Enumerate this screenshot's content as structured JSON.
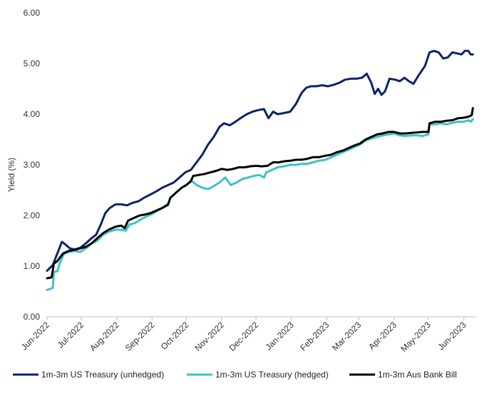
{
  "chart_data": {
    "type": "line",
    "title": "",
    "xlabel": "",
    "ylabel": "Yield (%)",
    "ylim": [
      0,
      6
    ],
    "grid": false,
    "legend_position": "bottom",
    "y_ticks": [
      "0.00",
      "1.00",
      "2.00",
      "3.00",
      "4.00",
      "5.00",
      "6.00"
    ],
    "x_ticks": [
      "Jun-2022",
      "Jul-2022",
      "Aug-2022",
      "Sep-2022",
      "Oct-2022",
      "Nov-2022",
      "Dec-2022",
      "Jan-2023",
      "Feb-2023",
      "Mar-2023",
      "Apr-2023",
      "May-2023",
      "Jun-2023"
    ],
    "series": [
      {
        "name": "1m-3m US Treasury (unhedged)",
        "color": "#0d2367",
        "points": [
          [
            "2022-06-01",
            0.91
          ],
          [
            "2022-06-06",
            1.02
          ],
          [
            "2022-06-10",
            1.25
          ],
          [
            "2022-06-14",
            1.48
          ],
          [
            "2022-06-17",
            1.43
          ],
          [
            "2022-06-21",
            1.35
          ],
          [
            "2022-06-25",
            1.33
          ],
          [
            "2022-06-30",
            1.36
          ],
          [
            "2022-07-05",
            1.45
          ],
          [
            "2022-07-10",
            1.55
          ],
          [
            "2022-07-14",
            1.62
          ],
          [
            "2022-07-18",
            1.82
          ],
          [
            "2022-07-22",
            2.05
          ],
          [
            "2022-07-26",
            2.15
          ],
          [
            "2022-07-31",
            2.22
          ],
          [
            "2022-08-05",
            2.22
          ],
          [
            "2022-08-10",
            2.2
          ],
          [
            "2022-08-15",
            2.25
          ],
          [
            "2022-08-20",
            2.28
          ],
          [
            "2022-08-25",
            2.35
          ],
          [
            "2022-08-31",
            2.42
          ],
          [
            "2022-09-05",
            2.48
          ],
          [
            "2022-09-10",
            2.55
          ],
          [
            "2022-09-15",
            2.6
          ],
          [
            "2022-09-20",
            2.65
          ],
          [
            "2022-09-25",
            2.75
          ],
          [
            "2022-09-30",
            2.85
          ],
          [
            "2022-10-05",
            2.9
          ],
          [
            "2022-10-10",
            3.05
          ],
          [
            "2022-10-15",
            3.2
          ],
          [
            "2022-10-20",
            3.4
          ],
          [
            "2022-10-25",
            3.55
          ],
          [
            "2022-10-30",
            3.75
          ],
          [
            "2022-11-03",
            3.82
          ],
          [
            "2022-11-08",
            3.78
          ],
          [
            "2022-11-13",
            3.85
          ],
          [
            "2022-11-18",
            3.93
          ],
          [
            "2022-11-23",
            4.0
          ],
          [
            "2022-11-28",
            4.05
          ],
          [
            "2022-12-03",
            4.08
          ],
          [
            "2022-12-08",
            4.1
          ],
          [
            "2022-12-12",
            3.92
          ],
          [
            "2022-12-16",
            4.05
          ],
          [
            "2022-12-20",
            4.0
          ],
          [
            "2022-12-25",
            4.02
          ],
          [
            "2022-12-31",
            4.05
          ],
          [
            "2023-01-05",
            4.2
          ],
          [
            "2023-01-10",
            4.42
          ],
          [
            "2023-01-14",
            4.52
          ],
          [
            "2023-01-18",
            4.55
          ],
          [
            "2023-01-23",
            4.55
          ],
          [
            "2023-01-28",
            4.57
          ],
          [
            "2023-02-02",
            4.55
          ],
          [
            "2023-02-07",
            4.58
          ],
          [
            "2023-02-12",
            4.62
          ],
          [
            "2023-02-17",
            4.68
          ],
          [
            "2023-02-22",
            4.7
          ],
          [
            "2023-02-27",
            4.7
          ],
          [
            "2023-03-04",
            4.72
          ],
          [
            "2023-03-08",
            4.8
          ],
          [
            "2023-03-12",
            4.62
          ],
          [
            "2023-03-15",
            4.4
          ],
          [
            "2023-03-18",
            4.5
          ],
          [
            "2023-03-21",
            4.38
          ],
          [
            "2023-03-24",
            4.45
          ],
          [
            "2023-03-28",
            4.7
          ],
          [
            "2023-04-02",
            4.68
          ],
          [
            "2023-04-06",
            4.65
          ],
          [
            "2023-04-10",
            4.72
          ],
          [
            "2023-04-14",
            4.65
          ],
          [
            "2023-04-18",
            4.6
          ],
          [
            "2023-04-22",
            4.75
          ],
          [
            "2023-04-25",
            4.85
          ],
          [
            "2023-04-28",
            4.95
          ],
          [
            "2023-05-02",
            5.22
          ],
          [
            "2023-05-06",
            5.25
          ],
          [
            "2023-05-10",
            5.22
          ],
          [
            "2023-05-14",
            5.1
          ],
          [
            "2023-05-18",
            5.12
          ],
          [
            "2023-05-22",
            5.22
          ],
          [
            "2023-05-26",
            5.2
          ],
          [
            "2023-05-30",
            5.18
          ],
          [
            "2023-06-02",
            5.25
          ],
          [
            "2023-06-05",
            5.25
          ],
          [
            "2023-06-07",
            5.18
          ],
          [
            "2023-06-09",
            5.18
          ]
        ]
      },
      {
        "name": "1m-3m US Treasury (hedged)",
        "color": "#3fc1c9",
        "points": [
          [
            "2022-06-01",
            0.53
          ],
          [
            "2022-06-06",
            0.57
          ],
          [
            "2022-06-07",
            0.88
          ],
          [
            "2022-06-10",
            0.9
          ],
          [
            "2022-06-12",
            1.05
          ],
          [
            "2022-06-16",
            1.25
          ],
          [
            "2022-06-20",
            1.28
          ],
          [
            "2022-06-25",
            1.3
          ],
          [
            "2022-06-30",
            1.28
          ],
          [
            "2022-07-05",
            1.35
          ],
          [
            "2022-07-10",
            1.45
          ],
          [
            "2022-07-15",
            1.5
          ],
          [
            "2022-07-20",
            1.62
          ],
          [
            "2022-07-25",
            1.68
          ],
          [
            "2022-07-31",
            1.72
          ],
          [
            "2022-08-05",
            1.72
          ],
          [
            "2022-08-09",
            1.7
          ],
          [
            "2022-08-12",
            1.82
          ],
          [
            "2022-08-17",
            1.85
          ],
          [
            "2022-08-22",
            1.92
          ],
          [
            "2022-08-27",
            1.98
          ],
          [
            "2022-08-31",
            2.02
          ],
          [
            "2022-09-05",
            2.08
          ],
          [
            "2022-09-10",
            2.15
          ],
          [
            "2022-09-15",
            2.2
          ],
          [
            "2022-09-17",
            2.35
          ],
          [
            "2022-09-22",
            2.45
          ],
          [
            "2022-09-27",
            2.55
          ],
          [
            "2022-10-02",
            2.62
          ],
          [
            "2022-10-06",
            2.68
          ],
          [
            "2022-10-10",
            2.6
          ],
          [
            "2022-10-15",
            2.55
          ],
          [
            "2022-10-20",
            2.52
          ],
          [
            "2022-10-25",
            2.58
          ],
          [
            "2022-10-30",
            2.65
          ],
          [
            "2022-11-04",
            2.75
          ],
          [
            "2022-11-09",
            2.6
          ],
          [
            "2022-11-14",
            2.65
          ],
          [
            "2022-11-19",
            2.72
          ],
          [
            "2022-11-24",
            2.75
          ],
          [
            "2022-11-29",
            2.78
          ],
          [
            "2022-12-04",
            2.8
          ],
          [
            "2022-12-08",
            2.75
          ],
          [
            "2022-12-10",
            2.85
          ],
          [
            "2022-12-15",
            2.9
          ],
          [
            "2022-12-20",
            2.95
          ],
          [
            "2022-12-25",
            2.97
          ],
          [
            "2022-12-31",
            3.0
          ],
          [
            "2023-01-05",
            3.0
          ],
          [
            "2023-01-10",
            3.02
          ],
          [
            "2023-01-15",
            3.02
          ],
          [
            "2023-01-20",
            3.05
          ],
          [
            "2023-01-25",
            3.08
          ],
          [
            "2023-01-31",
            3.1
          ],
          [
            "2023-02-05",
            3.15
          ],
          [
            "2023-02-10",
            3.2
          ],
          [
            "2023-02-15",
            3.25
          ],
          [
            "2023-02-20",
            3.3
          ],
          [
            "2023-02-25",
            3.35
          ],
          [
            "2023-03-02",
            3.4
          ],
          [
            "2023-03-07",
            3.48
          ],
          [
            "2023-03-12",
            3.52
          ],
          [
            "2023-03-17",
            3.55
          ],
          [
            "2023-03-22",
            3.58
          ],
          [
            "2023-03-27",
            3.6
          ],
          [
            "2023-04-01",
            3.62
          ],
          [
            "2023-04-06",
            3.58
          ],
          [
            "2023-04-11",
            3.57
          ],
          [
            "2023-04-16",
            3.58
          ],
          [
            "2023-04-21",
            3.58
          ],
          [
            "2023-04-26",
            3.57
          ],
          [
            "2023-05-01",
            3.6
          ],
          [
            "2023-05-02",
            3.8
          ],
          [
            "2023-05-07",
            3.8
          ],
          [
            "2023-05-12",
            3.82
          ],
          [
            "2023-05-17",
            3.8
          ],
          [
            "2023-05-22",
            3.83
          ],
          [
            "2023-05-27",
            3.85
          ],
          [
            "2023-06-01",
            3.85
          ],
          [
            "2023-06-05",
            3.88
          ],
          [
            "2023-06-07",
            3.85
          ],
          [
            "2023-06-09",
            3.9
          ]
        ]
      },
      {
        "name": "1m-3m Aus Bank Bill",
        "color": "#000000",
        "points": [
          [
            "2022-06-01",
            0.76
          ],
          [
            "2022-06-05",
            0.78
          ],
          [
            "2022-06-07",
            1.05
          ],
          [
            "2022-06-10",
            1.1
          ],
          [
            "2022-06-15",
            1.25
          ],
          [
            "2022-06-20",
            1.3
          ],
          [
            "2022-06-25",
            1.32
          ],
          [
            "2022-06-30",
            1.35
          ],
          [
            "2022-07-05",
            1.38
          ],
          [
            "2022-07-10",
            1.45
          ],
          [
            "2022-07-15",
            1.55
          ],
          [
            "2022-07-20",
            1.65
          ],
          [
            "2022-07-25",
            1.72
          ],
          [
            "2022-07-31",
            1.78
          ],
          [
            "2022-08-05",
            1.8
          ],
          [
            "2022-08-08",
            1.75
          ],
          [
            "2022-08-11",
            1.9
          ],
          [
            "2022-08-16",
            1.95
          ],
          [
            "2022-08-21",
            2.0
          ],
          [
            "2022-08-26",
            2.02
          ],
          [
            "2022-08-31",
            2.05
          ],
          [
            "2022-09-05",
            2.1
          ],
          [
            "2022-09-10",
            2.15
          ],
          [
            "2022-09-15",
            2.22
          ],
          [
            "2022-09-17",
            2.35
          ],
          [
            "2022-09-22",
            2.45
          ],
          [
            "2022-09-27",
            2.55
          ],
          [
            "2022-10-01",
            2.6
          ],
          [
            "2022-10-05",
            2.68
          ],
          [
            "2022-10-07",
            2.78
          ],
          [
            "2022-10-12",
            2.8
          ],
          [
            "2022-10-17",
            2.82
          ],
          [
            "2022-10-22",
            2.85
          ],
          [
            "2022-10-27",
            2.88
          ],
          [
            "2022-11-01",
            2.92
          ],
          [
            "2022-11-06",
            2.9
          ],
          [
            "2022-11-11",
            2.92
          ],
          [
            "2022-11-16",
            2.95
          ],
          [
            "2022-11-21",
            2.95
          ],
          [
            "2022-11-26",
            2.97
          ],
          [
            "2022-12-01",
            2.98
          ],
          [
            "2022-12-06",
            2.97
          ],
          [
            "2022-12-11",
            2.98
          ],
          [
            "2022-12-16",
            3.05
          ],
          [
            "2022-12-21",
            3.05
          ],
          [
            "2022-12-26",
            3.07
          ],
          [
            "2022-12-31",
            3.08
          ],
          [
            "2023-01-05",
            3.1
          ],
          [
            "2023-01-10",
            3.1
          ],
          [
            "2023-01-15",
            3.12
          ],
          [
            "2023-01-20",
            3.15
          ],
          [
            "2023-01-25",
            3.15
          ],
          [
            "2023-01-31",
            3.18
          ],
          [
            "2023-02-05",
            3.2
          ],
          [
            "2023-02-10",
            3.25
          ],
          [
            "2023-02-15",
            3.28
          ],
          [
            "2023-02-20",
            3.33
          ],
          [
            "2023-02-25",
            3.38
          ],
          [
            "2023-03-02",
            3.42
          ],
          [
            "2023-03-07",
            3.5
          ],
          [
            "2023-03-12",
            3.55
          ],
          [
            "2023-03-17",
            3.6
          ],
          [
            "2023-03-22",
            3.62
          ],
          [
            "2023-03-27",
            3.65
          ],
          [
            "2023-04-01",
            3.65
          ],
          [
            "2023-04-06",
            3.62
          ],
          [
            "2023-04-11",
            3.62
          ],
          [
            "2023-04-16",
            3.63
          ],
          [
            "2023-04-21",
            3.64
          ],
          [
            "2023-04-26",
            3.65
          ],
          [
            "2023-05-01",
            3.65
          ],
          [
            "2023-05-02",
            3.82
          ],
          [
            "2023-05-07",
            3.85
          ],
          [
            "2023-05-12",
            3.85
          ],
          [
            "2023-05-17",
            3.87
          ],
          [
            "2023-05-22",
            3.88
          ],
          [
            "2023-05-27",
            3.92
          ],
          [
            "2023-06-01",
            3.93
          ],
          [
            "2023-06-05",
            3.95
          ],
          [
            "2023-06-08",
            3.98
          ],
          [
            "2023-06-09",
            4.12
          ]
        ]
      }
    ]
  }
}
